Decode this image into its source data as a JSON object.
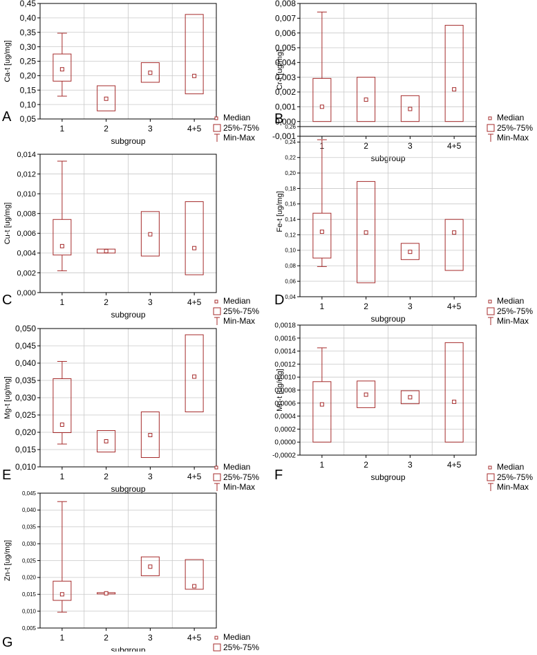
{
  "figure": {
    "xlabel": "subgroup",
    "legend": {
      "median": "Median",
      "box": "25%-75%",
      "whisker": "Min-Max"
    },
    "colors": {
      "box": "#a52a2a",
      "grid": "#c8c8c8",
      "axis": "#000000",
      "text": "#000000"
    }
  },
  "chart_data": [
    {
      "panel": "A",
      "type": "box",
      "ylabel": "Ca-t [ug/mg]",
      "categories": [
        "1",
        "2",
        "3",
        "4+5"
      ],
      "yticks": [
        "0,05",
        "0,10",
        "0,15",
        "0,20",
        "0,25",
        "0,30",
        "0,35",
        "0,40",
        "0,45"
      ],
      "ylim": [
        0.05,
        0.45
      ],
      "boxes": [
        {
          "min": 0.129,
          "q1": 0.181,
          "median": 0.222,
          "q3": 0.275,
          "max": 0.347
        },
        {
          "min": 0.078,
          "q1": 0.078,
          "median": 0.12,
          "q3": 0.165,
          "max": 0.165
        },
        {
          "min": 0.177,
          "q1": 0.177,
          "median": 0.21,
          "q3": 0.245,
          "max": 0.245
        },
        {
          "min": 0.137,
          "q1": 0.137,
          "median": 0.199,
          "q3": 0.412,
          "max": 0.412
        }
      ]
    },
    {
      "panel": "B",
      "type": "box",
      "ylabel": "Cr-t [ug/mg]",
      "categories": [
        "1",
        "2",
        "3",
        "4+5"
      ],
      "yticks": [
        "-0,001",
        "0,000",
        "0,001",
        "0,002",
        "0,003",
        "0,004",
        "0,005",
        "0,006",
        "0,007",
        "0,008"
      ],
      "ylim": [
        -0.001,
        0.008
      ],
      "boxes": [
        {
          "min": 0.0,
          "q1": 0.0,
          "median": 0.001,
          "q3": 0.00292,
          "max": 0.00742
        },
        {
          "min": 0.0,
          "q1": 0.0,
          "median": 0.00148,
          "q3": 0.003,
          "max": 0.003
        },
        {
          "min": 0.0,
          "q1": 0.0,
          "median": 0.00085,
          "q3": 0.00175,
          "max": 0.00175
        },
        {
          "min": 0.0,
          "q1": 0.0,
          "median": 0.00218,
          "q3": 0.00652,
          "max": 0.00652
        }
      ]
    },
    {
      "panel": "C",
      "type": "box",
      "ylabel": "Cu-t [ug/mg]",
      "categories": [
        "1",
        "2",
        "3",
        "4+5"
      ],
      "yticks": [
        "0,000",
        "0,002",
        "0,004",
        "0,006",
        "0,008",
        "0,010",
        "0,012",
        "0,014"
      ],
      "ylim": [
        0.0,
        0.014
      ],
      "boxes": [
        {
          "min": 0.0022,
          "q1": 0.0038,
          "median": 0.0047,
          "q3": 0.0074,
          "max": 0.0133
        },
        {
          "min": 0.004,
          "q1": 0.004,
          "median": 0.0042,
          "q3": 0.0044,
          "max": 0.0044
        },
        {
          "min": 0.0037,
          "q1": 0.0037,
          "median": 0.0059,
          "q3": 0.0082,
          "max": 0.0082
        },
        {
          "min": 0.0018,
          "q1": 0.0018,
          "median": 0.0045,
          "q3": 0.0092,
          "max": 0.0092
        }
      ]
    },
    {
      "panel": "D",
      "type": "box",
      "ylabel": "Fe-t [ug/mg]",
      "categories": [
        "1",
        "2",
        "3",
        "4+5"
      ],
      "yticks": [
        "0,04",
        "0,06",
        "0,08",
        "0,10",
        "0,12",
        "0,14",
        "0,16",
        "0,18",
        "0,20",
        "0,22",
        "0,24",
        "0,26"
      ],
      "ylim": [
        0.04,
        0.26
      ],
      "boxes": [
        {
          "min": 0.079,
          "q1": 0.09,
          "median": 0.124,
          "q3": 0.148,
          "max": 0.243
        },
        {
          "min": 0.058,
          "q1": 0.058,
          "median": 0.123,
          "q3": 0.189,
          "max": 0.189
        },
        {
          "min": 0.088,
          "q1": 0.088,
          "median": 0.098,
          "q3": 0.109,
          "max": 0.109
        },
        {
          "min": 0.074,
          "q1": 0.074,
          "median": 0.123,
          "q3": 0.14,
          "max": 0.14
        }
      ]
    },
    {
      "panel": "E",
      "type": "box",
      "ylabel": "Mg-t [ug/mg]",
      "categories": [
        "1",
        "2",
        "3",
        "4+5"
      ],
      "yticks": [
        "0,010",
        "0,015",
        "0,020",
        "0,025",
        "0,030",
        "0,035",
        "0,040",
        "0,045",
        "0,050"
      ],
      "ylim": [
        0.01,
        0.05
      ],
      "boxes": [
        {
          "min": 0.0166,
          "q1": 0.0199,
          "median": 0.0222,
          "q3": 0.0355,
          "max": 0.0405
        },
        {
          "min": 0.0143,
          "q1": 0.0143,
          "median": 0.0174,
          "q3": 0.0205,
          "max": 0.0205
        },
        {
          "min": 0.0127,
          "q1": 0.0127,
          "median": 0.0192,
          "q3": 0.0259,
          "max": 0.0259
        },
        {
          "min": 0.0259,
          "q1": 0.0259,
          "median": 0.0361,
          "q3": 0.0482,
          "max": 0.0482
        }
      ]
    },
    {
      "panel": "F",
      "type": "box",
      "ylabel": "Mn-t [ug/mg]",
      "categories": [
        "1",
        "2",
        "3",
        "4+5"
      ],
      "yticks": [
        "-0,0002",
        "0,0000",
        "0,0002",
        "0,0004",
        "0,0006",
        "0,0008",
        "0,0010",
        "0,0012",
        "0,0014",
        "0,0016",
        "0,0018"
      ],
      "ylim": [
        -0.0002,
        0.0018
      ],
      "boxes": [
        {
          "min": 0.0,
          "q1": 0.0,
          "median": 0.00058,
          "q3": 0.00093,
          "max": 0.00145
        },
        {
          "min": 0.00053,
          "q1": 0.00053,
          "median": 0.00073,
          "q3": 0.00094,
          "max": 0.00094
        },
        {
          "min": 0.00059,
          "q1": 0.00059,
          "median": 0.00069,
          "q3": 0.00079,
          "max": 0.00079
        },
        {
          "min": 0.0,
          "q1": 0.0,
          "median": 0.00062,
          "q3": 0.00153,
          "max": 0.00153
        }
      ]
    },
    {
      "panel": "G",
      "type": "box",
      "ylabel": "Zn-t [ug/mg]",
      "categories": [
        "1",
        "2",
        "3",
        "4+5"
      ],
      "yticks": [
        "0,005",
        "0,010",
        "0,015",
        "0,020",
        "0,025",
        "0,030",
        "0,035",
        "0,040",
        "0,045"
      ],
      "ylim": [
        0.005,
        0.045
      ],
      "boxes": [
        {
          "min": 0.0097,
          "q1": 0.0132,
          "median": 0.015,
          "q3": 0.0189,
          "max": 0.0425
        },
        {
          "min": 0.0151,
          "q1": 0.0151,
          "median": 0.0153,
          "q3": 0.0155,
          "max": 0.0155
        },
        {
          "min": 0.0205,
          "q1": 0.0205,
          "median": 0.0232,
          "q3": 0.0261,
          "max": 0.0261
        },
        {
          "min": 0.0165,
          "q1": 0.0165,
          "median": 0.0174,
          "q3": 0.0253,
          "max": 0.0253
        }
      ]
    }
  ]
}
